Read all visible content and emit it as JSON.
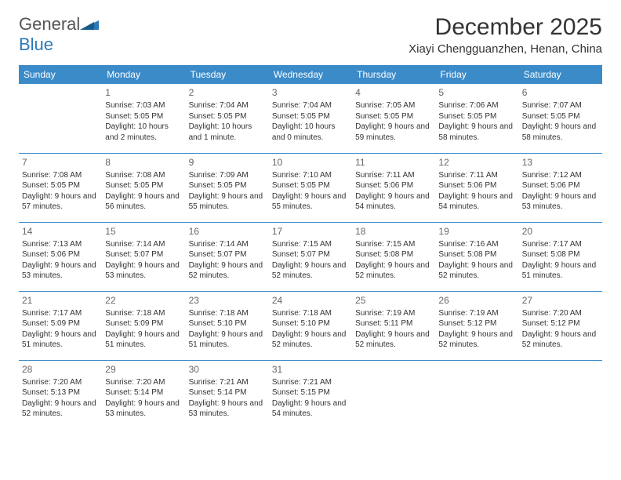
{
  "brand": {
    "name1": "General",
    "name2": "Blue",
    "text_color": "#555555",
    "accent_color": "#2a7ab9"
  },
  "title": "December 2025",
  "location": "Xiayi Chengguanzhen, Henan, China",
  "colors": {
    "header_bg": "#3b8bc9",
    "header_text": "#ffffff",
    "row_divider": "#3b8bc9",
    "text": "#333333",
    "daynum": "#666666",
    "background": "#ffffff"
  },
  "typography": {
    "title_fontsize": 30,
    "location_fontsize": 15,
    "dayhead_fontsize": 12,
    "cell_fontsize": 10,
    "daynum_fontsize": 12
  },
  "day_headers": [
    "Sunday",
    "Monday",
    "Tuesday",
    "Wednesday",
    "Thursday",
    "Friday",
    "Saturday"
  ],
  "weeks": [
    [
      {
        "n": "",
        "s": "",
        "ss": "",
        "d": ""
      },
      {
        "n": "1",
        "s": "Sunrise: 7:03 AM",
        "ss": "Sunset: 5:05 PM",
        "d": "Daylight: 10 hours and 2 minutes."
      },
      {
        "n": "2",
        "s": "Sunrise: 7:04 AM",
        "ss": "Sunset: 5:05 PM",
        "d": "Daylight: 10 hours and 1 minute."
      },
      {
        "n": "3",
        "s": "Sunrise: 7:04 AM",
        "ss": "Sunset: 5:05 PM",
        "d": "Daylight: 10 hours and 0 minutes."
      },
      {
        "n": "4",
        "s": "Sunrise: 7:05 AM",
        "ss": "Sunset: 5:05 PM",
        "d": "Daylight: 9 hours and 59 minutes."
      },
      {
        "n": "5",
        "s": "Sunrise: 7:06 AM",
        "ss": "Sunset: 5:05 PM",
        "d": "Daylight: 9 hours and 58 minutes."
      },
      {
        "n": "6",
        "s": "Sunrise: 7:07 AM",
        "ss": "Sunset: 5:05 PM",
        "d": "Daylight: 9 hours and 58 minutes."
      }
    ],
    [
      {
        "n": "7",
        "s": "Sunrise: 7:08 AM",
        "ss": "Sunset: 5:05 PM",
        "d": "Daylight: 9 hours and 57 minutes."
      },
      {
        "n": "8",
        "s": "Sunrise: 7:08 AM",
        "ss": "Sunset: 5:05 PM",
        "d": "Daylight: 9 hours and 56 minutes."
      },
      {
        "n": "9",
        "s": "Sunrise: 7:09 AM",
        "ss": "Sunset: 5:05 PM",
        "d": "Daylight: 9 hours and 55 minutes."
      },
      {
        "n": "10",
        "s": "Sunrise: 7:10 AM",
        "ss": "Sunset: 5:05 PM",
        "d": "Daylight: 9 hours and 55 minutes."
      },
      {
        "n": "11",
        "s": "Sunrise: 7:11 AM",
        "ss": "Sunset: 5:06 PM",
        "d": "Daylight: 9 hours and 54 minutes."
      },
      {
        "n": "12",
        "s": "Sunrise: 7:11 AM",
        "ss": "Sunset: 5:06 PM",
        "d": "Daylight: 9 hours and 54 minutes."
      },
      {
        "n": "13",
        "s": "Sunrise: 7:12 AM",
        "ss": "Sunset: 5:06 PM",
        "d": "Daylight: 9 hours and 53 minutes."
      }
    ],
    [
      {
        "n": "14",
        "s": "Sunrise: 7:13 AM",
        "ss": "Sunset: 5:06 PM",
        "d": "Daylight: 9 hours and 53 minutes."
      },
      {
        "n": "15",
        "s": "Sunrise: 7:14 AM",
        "ss": "Sunset: 5:07 PM",
        "d": "Daylight: 9 hours and 53 minutes."
      },
      {
        "n": "16",
        "s": "Sunrise: 7:14 AM",
        "ss": "Sunset: 5:07 PM",
        "d": "Daylight: 9 hours and 52 minutes."
      },
      {
        "n": "17",
        "s": "Sunrise: 7:15 AM",
        "ss": "Sunset: 5:07 PM",
        "d": "Daylight: 9 hours and 52 minutes."
      },
      {
        "n": "18",
        "s": "Sunrise: 7:15 AM",
        "ss": "Sunset: 5:08 PM",
        "d": "Daylight: 9 hours and 52 minutes."
      },
      {
        "n": "19",
        "s": "Sunrise: 7:16 AM",
        "ss": "Sunset: 5:08 PM",
        "d": "Daylight: 9 hours and 52 minutes."
      },
      {
        "n": "20",
        "s": "Sunrise: 7:17 AM",
        "ss": "Sunset: 5:08 PM",
        "d": "Daylight: 9 hours and 51 minutes."
      }
    ],
    [
      {
        "n": "21",
        "s": "Sunrise: 7:17 AM",
        "ss": "Sunset: 5:09 PM",
        "d": "Daylight: 9 hours and 51 minutes."
      },
      {
        "n": "22",
        "s": "Sunrise: 7:18 AM",
        "ss": "Sunset: 5:09 PM",
        "d": "Daylight: 9 hours and 51 minutes."
      },
      {
        "n": "23",
        "s": "Sunrise: 7:18 AM",
        "ss": "Sunset: 5:10 PM",
        "d": "Daylight: 9 hours and 51 minutes."
      },
      {
        "n": "24",
        "s": "Sunrise: 7:18 AM",
        "ss": "Sunset: 5:10 PM",
        "d": "Daylight: 9 hours and 52 minutes."
      },
      {
        "n": "25",
        "s": "Sunrise: 7:19 AM",
        "ss": "Sunset: 5:11 PM",
        "d": "Daylight: 9 hours and 52 minutes."
      },
      {
        "n": "26",
        "s": "Sunrise: 7:19 AM",
        "ss": "Sunset: 5:12 PM",
        "d": "Daylight: 9 hours and 52 minutes."
      },
      {
        "n": "27",
        "s": "Sunrise: 7:20 AM",
        "ss": "Sunset: 5:12 PM",
        "d": "Daylight: 9 hours and 52 minutes."
      }
    ],
    [
      {
        "n": "28",
        "s": "Sunrise: 7:20 AM",
        "ss": "Sunset: 5:13 PM",
        "d": "Daylight: 9 hours and 52 minutes."
      },
      {
        "n": "29",
        "s": "Sunrise: 7:20 AM",
        "ss": "Sunset: 5:14 PM",
        "d": "Daylight: 9 hours and 53 minutes."
      },
      {
        "n": "30",
        "s": "Sunrise: 7:21 AM",
        "ss": "Sunset: 5:14 PM",
        "d": "Daylight: 9 hours and 53 minutes."
      },
      {
        "n": "31",
        "s": "Sunrise: 7:21 AM",
        "ss": "Sunset: 5:15 PM",
        "d": "Daylight: 9 hours and 54 minutes."
      },
      {
        "n": "",
        "s": "",
        "ss": "",
        "d": ""
      },
      {
        "n": "",
        "s": "",
        "ss": "",
        "d": ""
      },
      {
        "n": "",
        "s": "",
        "ss": "",
        "d": ""
      }
    ]
  ]
}
